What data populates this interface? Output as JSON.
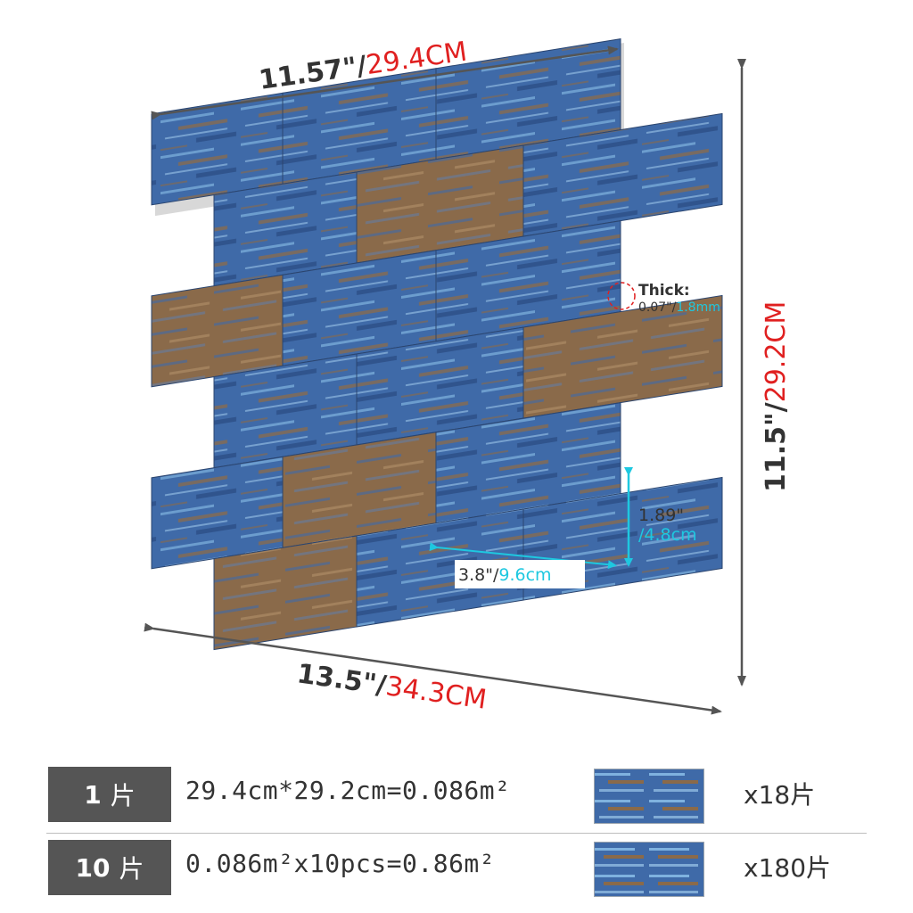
{
  "dimensions": {
    "top_width_in": "11.57\"/",
    "top_width_cm": "29.4CM",
    "bottom_width_in": "13.5\"/",
    "bottom_width_cm": "34.3CM",
    "height_in": "11.5\"/",
    "height_cm": "29.2CM",
    "thick_label": "Thick:",
    "thick_in": "0.07\"/",
    "thick_mm": "1.8mm",
    "tile_height_in": "1.89\"",
    "tile_height_cm": "/4.8cm",
    "tile_width_in": "3.8\"/",
    "tile_width_cm": "9.6cm"
  },
  "colors": {
    "inch_text": "#333333",
    "metric_text": "#e02020",
    "detail_metric_text": "#1ec8e0",
    "arrow": "#555555",
    "tile_blue": "#3f6aa8",
    "tile_light": "#7fb2df",
    "tile_brown": "#8a6a4a",
    "table_box": "#555555"
  },
  "table": {
    "rows": [
      {
        "qty": "1",
        "unit": "片",
        "calc": "29.4cm*29.2cm=0.086m²",
        "count": "x18片"
      },
      {
        "qty": "10",
        "unit": "片",
        "calc": "0.086m²x10pcs=0.86m²",
        "count": "x180片"
      }
    ]
  }
}
